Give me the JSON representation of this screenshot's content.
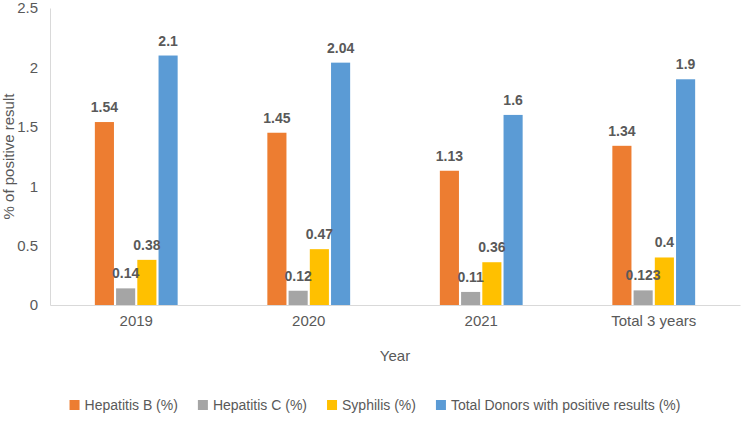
{
  "chart_data": {
    "type": "bar",
    "x_label": "Year",
    "y_label": "% of positive result",
    "categories": [
      "2019",
      "2020",
      "2021",
      "Total 3 years"
    ],
    "series": [
      {
        "name": "Hepatitis B (%)",
        "color": "#ED7D31",
        "values": [
          1.54,
          1.45,
          1.13,
          1.34
        ]
      },
      {
        "name": "Hepatitis C (%)",
        "color": "#A5A5A5",
        "values": [
          0.14,
          0.12,
          0.11,
          0.123
        ]
      },
      {
        "name": "Syphilis (%)",
        "color": "#FFC000",
        "values": [
          0.38,
          0.47,
          0.36,
          0.4
        ]
      },
      {
        "name": "Total Donors with positive results (%)",
        "color": "#5B9BD5",
        "values": [
          2.1,
          2.04,
          1.6,
          1.9
        ]
      }
    ],
    "ylim": [
      0,
      2.5
    ],
    "yticks": [
      0,
      0.5,
      1,
      1.5,
      2,
      2.5
    ],
    "grid": false,
    "legend": "bottom",
    "data_labels": true
  }
}
